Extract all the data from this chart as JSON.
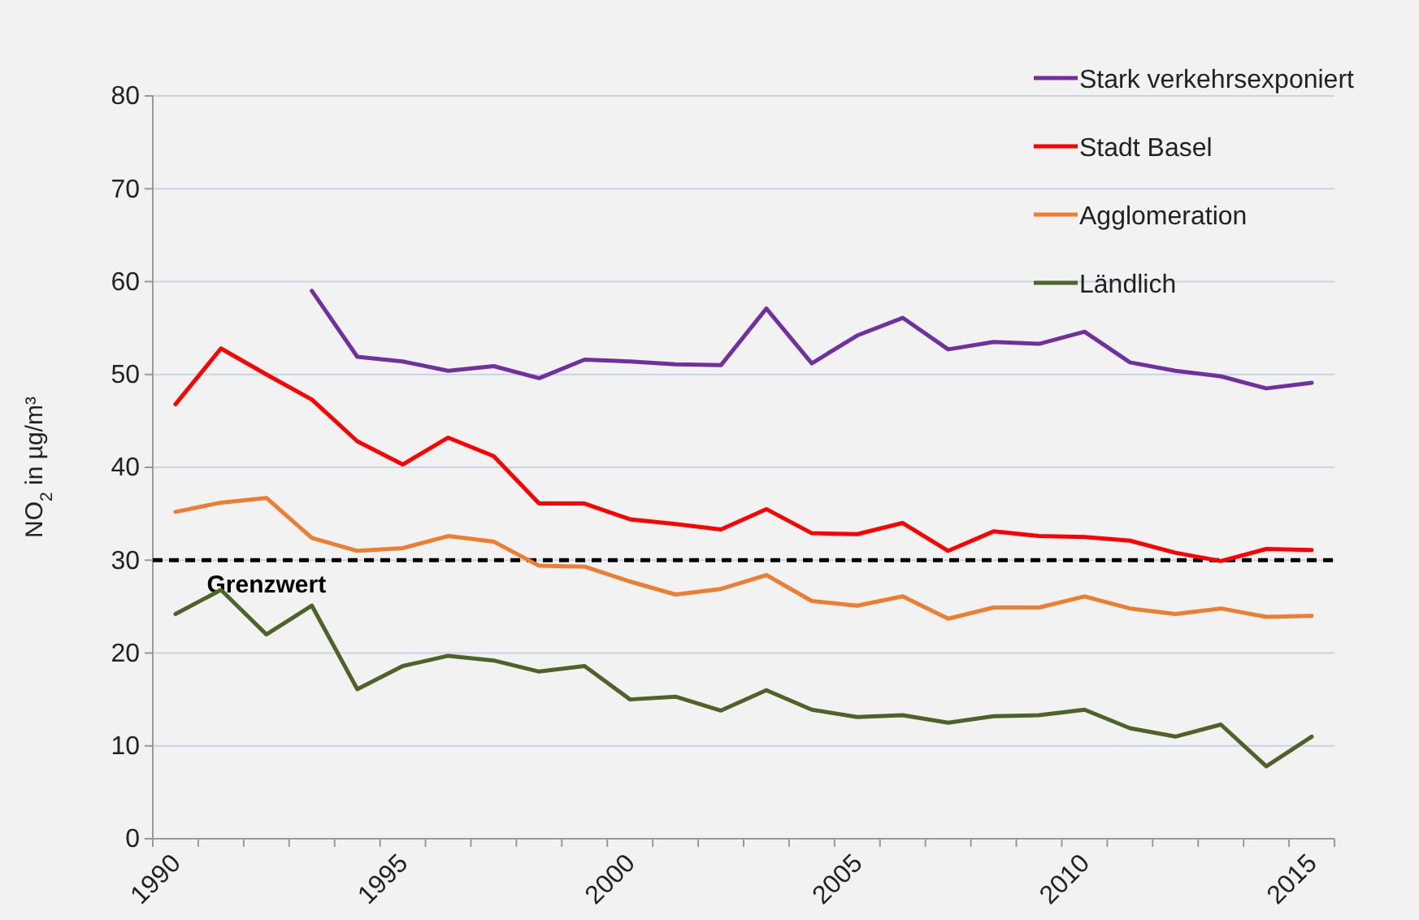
{
  "chart_data": {
    "type": "line",
    "ylabel": "NO$_{2}$ in µg/m³",
    "categories": [
      "1990",
      null,
      null,
      null,
      null,
      "1995",
      null,
      null,
      null,
      null,
      "2000",
      null,
      null,
      null,
      null,
      "2005",
      null,
      null,
      null,
      null,
      "2010",
      null,
      null,
      null,
      null,
      "2015"
    ],
    "series": [
      {
        "name": "Stark verkehrsexponiert",
        "color": "#7030a0",
        "values": [
          null,
          null,
          null,
          59,
          51.9,
          51.4,
          50.4,
          50.9,
          49.6,
          51.6,
          51.4,
          51.1,
          51,
          57.1,
          51.2,
          54.2,
          56.1,
          52.7,
          53.5,
          53.3,
          54.6,
          51.3,
          50.4,
          49.8,
          48.5,
          49.1
        ]
      },
      {
        "name": "Stadt Basel",
        "color": "#ff0000",
        "values": [
          46.8,
          52.8,
          50,
          47.3,
          42.8,
          40.3,
          43.2,
          41.2,
          36.1,
          36.1,
          34.4,
          33.9,
          33.3,
          35.5,
          32.9,
          32.8,
          34,
          31,
          33.1,
          32.6,
          32.5,
          32.1,
          30.8,
          29.9,
          31.2,
          31.1
        ]
      },
      {
        "name": "Agglomeration",
        "color": "#ed7d31",
        "values": [
          35.2,
          36.2,
          36.7,
          32.4,
          31,
          31.3,
          32.6,
          32,
          29.4,
          29.3,
          27.7,
          26.3,
          26.9,
          28.4,
          25.6,
          25.1,
          26.1,
          23.7,
          24.9,
          24.9,
          26.1,
          24.8,
          24.2,
          24.8,
          23.9,
          24
        ]
      },
      {
        "name": "Ländlich",
        "color": "#4f6228",
        "values": [
          24.2,
          26.8,
          22,
          25.1,
          16.1,
          18.6,
          19.7,
          19.2,
          18,
          18.6,
          15,
          15.3,
          13.8,
          16,
          13.9,
          13.1,
          13.3,
          12.5,
          13.2,
          13.3,
          13.9,
          11.9,
          11,
          12.3,
          7.8,
          11
        ]
      }
    ],
    "ylim": [
      0,
      80
    ],
    "yticks": [
      0,
      10,
      20,
      30,
      40,
      50,
      60,
      70,
      80
    ],
    "grid": "y",
    "legend": "top right",
    "marker": "none",
    "line_style": "solid",
    "ref_lines": [
      {
        "axis": "y",
        "value": 30,
        "label": "Grenzwert",
        "color": "#000000",
        "line_style": "dashed"
      }
    ]
  }
}
